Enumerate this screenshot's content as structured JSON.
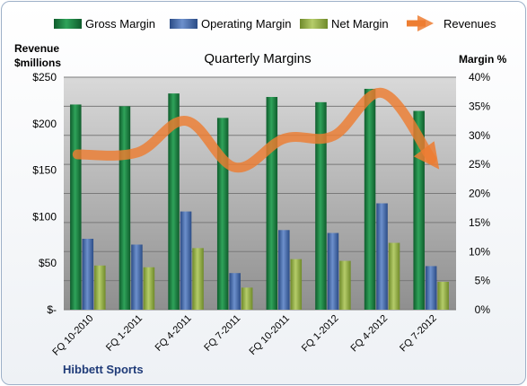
{
  "chart_data": {
    "type": "bar",
    "title": "Quarterly Margins",
    "left_axis_title_line1": "Revenue",
    "left_axis_title_line2": "$millions",
    "right_axis_title": "Margin %",
    "footer": "Hibbett Sports",
    "categories": [
      "FQ 10-2010",
      "FQ 1-2011",
      "FQ 4-2011",
      "FQ 7-2011",
      "FQ 10-2011",
      "FQ 1-2012",
      "FQ 4-2012",
      "FQ 7-2012"
    ],
    "y_left_ticks": [
      "$-",
      "$50",
      "$100",
      "$150",
      "$200",
      "$250"
    ],
    "y_right_ticks": [
      "0%",
      "5%",
      "10%",
      "15%",
      "20%",
      "25%",
      "30%",
      "35%",
      "40%"
    ],
    "ylim_left": [
      0,
      250
    ],
    "ylim_right": [
      0,
      40
    ],
    "grid": true,
    "legend_position": "top",
    "series": [
      {
        "name": "Gross Margin",
        "kind": "bar",
        "axis": "right",
        "color": "#1e8a46",
        "values": [
          35.3,
          35.0,
          37.2,
          33.0,
          36.6,
          35.7,
          38.0,
          34.2
        ]
      },
      {
        "name": "Operating Margin",
        "kind": "bar",
        "axis": "right",
        "color": "#4f74b4",
        "values": [
          12.2,
          11.2,
          16.9,
          6.3,
          13.7,
          13.2,
          18.3,
          7.5
        ]
      },
      {
        "name": "Net Margin",
        "kind": "bar",
        "axis": "right",
        "color": "#98b34a",
        "values": [
          7.6,
          7.3,
          10.6,
          3.8,
          8.7,
          8.4,
          11.5,
          4.8
        ]
      },
      {
        "name": "Revenues",
        "kind": "line",
        "axis": "left",
        "color": "#ed7d31",
        "values": [
          167,
          169,
          203,
          153,
          184,
          187,
          233,
          162
        ]
      }
    ]
  }
}
